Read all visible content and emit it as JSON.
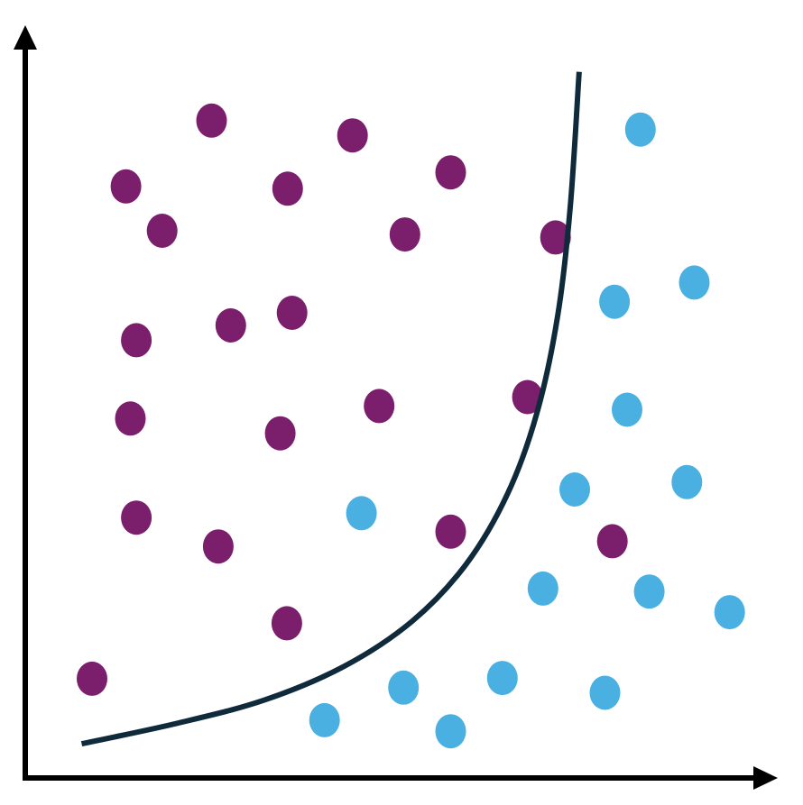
{
  "chart_data": {
    "type": "scatter",
    "title": "",
    "xlabel": "",
    "ylabel": "",
    "grid": false,
    "legend": "none",
    "xlim": [
      0,
      100
    ],
    "ylim": [
      0,
      100
    ],
    "series": [
      {
        "color": "#7b1e6c",
        "points": [
          [
            25.0,
            88.8
          ],
          [
            44.1,
            86.8
          ],
          [
            13.4,
            79.9
          ],
          [
            35.3,
            79.6
          ],
          [
            57.4,
            81.8
          ],
          [
            18.3,
            73.9
          ],
          [
            51.2,
            73.4
          ],
          [
            71.6,
            73.0
          ],
          [
            14.8,
            59.1
          ],
          [
            27.6,
            61.1
          ],
          [
            35.9,
            62.8
          ],
          [
            14.0,
            48.5
          ],
          [
            47.7,
            50.2
          ],
          [
            34.3,
            46.5
          ],
          [
            67.8,
            51.4
          ],
          [
            14.8,
            35.1
          ],
          [
            25.9,
            31.2
          ],
          [
            57.4,
            33.2
          ],
          [
            79.3,
            31.9
          ],
          [
            35.2,
            20.8
          ],
          [
            8.8,
            13.3
          ]
        ]
      },
      {
        "color": "#4ab0e2",
        "points": [
          [
            83.1,
            87.6
          ],
          [
            90.4,
            66.9
          ],
          [
            79.6,
            64.3
          ],
          [
            81.3,
            49.7
          ],
          [
            74.2,
            38.9
          ],
          [
            89.4,
            39.9
          ],
          [
            45.3,
            35.7
          ],
          [
            69.9,
            25.5
          ],
          [
            84.3,
            25.1
          ],
          [
            95.2,
            22.3
          ],
          [
            51.0,
            12.1
          ],
          [
            64.4,
            13.4
          ],
          [
            78.3,
            11.4
          ],
          [
            40.3,
            7.7
          ],
          [
            57.4,
            6.2
          ]
        ]
      }
    ],
    "boundary": {
      "color": "#0f2a3a",
      "points": [
        [
          7.4,
          4.5
        ],
        [
          20.0,
          7.2
        ],
        [
          32.1,
          10.4
        ],
        [
          43.0,
          15.0
        ],
        [
          52.2,
          21.1
        ],
        [
          59.5,
          28.8
        ],
        [
          65.1,
          38.3
        ],
        [
          69.1,
          49.3
        ],
        [
          71.9,
          62.4
        ],
        [
          73.6,
          77.1
        ],
        [
          74.8,
          95.4
        ]
      ]
    },
    "axis_color": "#000000"
  }
}
